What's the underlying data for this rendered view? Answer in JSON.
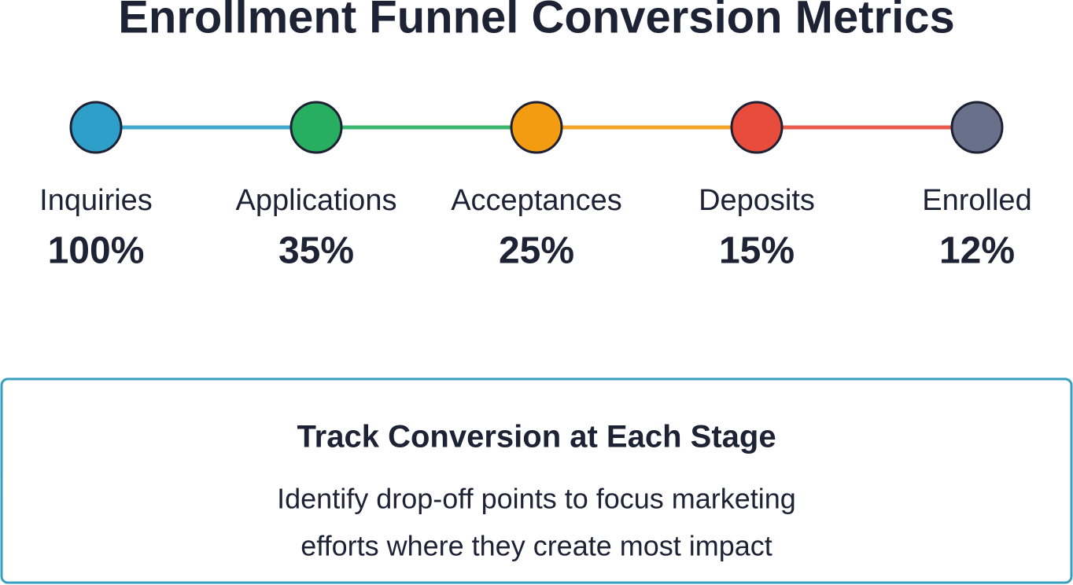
{
  "header": {
    "title": "Enrollment Funnel Conversion Metrics"
  },
  "stages": [
    {
      "label": "Inquiries",
      "value": "100%",
      "color": "#2e9fc8"
    },
    {
      "label": "Applications",
      "value": "35%",
      "color": "#27ae60"
    },
    {
      "label": "Acceptances",
      "value": "25%",
      "color": "#f39c12"
    },
    {
      "label": "Deposits",
      "value": "15%",
      "color": "#e74c3c"
    },
    {
      "label": "Enrolled",
      "value": "12%",
      "color": "#697089"
    }
  ],
  "callout": {
    "title": "Track Conversion at Each Stage",
    "lines": [
      "Identify drop-off points to focus marketing",
      "efforts where they create most impact"
    ]
  }
}
